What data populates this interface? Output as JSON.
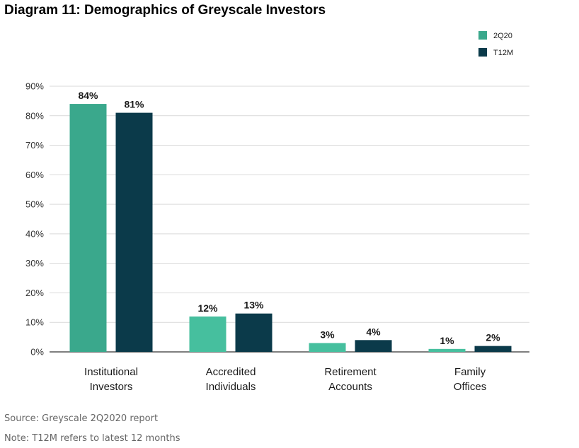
{
  "title": "Diagram 11: Demographics of Greyscale Investors",
  "footer": {
    "source": "Source: Greyscale 2Q2020 report",
    "note": "Note: T12M refers to latest 12 months"
  },
  "colors": {
    "s1": "#3aa88c",
    "s2": "#0b3a4a",
    "grid": "#d9d9d9",
    "axis": "#333333"
  },
  "chart_data": {
    "type": "bar",
    "categories": [
      [
        "Institutional",
        "Investors"
      ],
      [
        "Accredited",
        "Individuals"
      ],
      [
        "Retirement",
        "Accounts"
      ],
      [
        "Family",
        "Offices"
      ]
    ],
    "series": [
      {
        "name": "2Q20",
        "values": [
          84,
          12,
          3,
          1
        ],
        "labels": [
          "84%",
          "12%",
          "3%",
          "1%"
        ],
        "colors": [
          "#3aa88c",
          "#46bf9e",
          "#46bf9e",
          "#46bf9e"
        ]
      },
      {
        "name": "T12M",
        "values": [
          81,
          13,
          4,
          2
        ],
        "labels": [
          "81%",
          "13%",
          "4%",
          "2%"
        ],
        "colors": [
          "#0b3a4a",
          "#0b3a4a",
          "#0b3a4a",
          "#0b3a4a"
        ]
      }
    ],
    "ylim": [
      0,
      90
    ],
    "yticks": [
      0,
      10,
      20,
      30,
      40,
      50,
      60,
      70,
      80,
      90
    ],
    "ytick_labels": [
      "0%",
      "10%",
      "20%",
      "30%",
      "40%",
      "50%",
      "60%",
      "70%",
      "80%",
      "90%"
    ],
    "grid": true,
    "legend": "top-right"
  }
}
